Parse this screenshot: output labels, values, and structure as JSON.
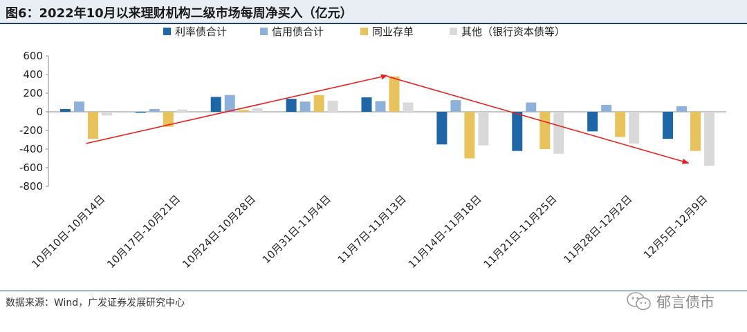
{
  "title": "图6：2022年10月以来理财机构二级市场每周净买入（亿元）",
  "source": "数据来源：Wind，广发证券发展研究中心",
  "watermark": "郁言债市",
  "colors": {
    "series": [
      "#1f66a6",
      "#8eb1d9",
      "#e8c35c",
      "#d9d9d9"
    ],
    "arrow": "#e8201e",
    "axis": "#8a8a8a"
  },
  "chart_data": {
    "type": "bar",
    "title": "2022年10月以来理财机构二级市场每周净买入（亿元）",
    "categories": [
      "10月10日-10月14日",
      "10月17日-10月21日",
      "10月24日-10月28日",
      "10月31日-11月4日",
      "11月7日-11月13日",
      "11月14日-11月18日",
      "11月21日-11月25日",
      "11月28日-12月2日",
      "12月5日-12月9日"
    ],
    "series": [
      {
        "name": "利率债合计",
        "values": [
          30,
          -10,
          160,
          140,
          155,
          -350,
          -420,
          -210,
          -290
        ]
      },
      {
        "name": "信用债合计",
        "values": [
          110,
          30,
          180,
          110,
          115,
          125,
          100,
          75,
          60
        ]
      },
      {
        "name": "同业存单",
        "values": [
          -290,
          -160,
          20,
          180,
          380,
          -500,
          -400,
          -270,
          -420
        ]
      },
      {
        "name": "其他（银行资本债等）",
        "values": [
          -40,
          25,
          40,
          120,
          100,
          -360,
          -450,
          -340,
          -580
        ]
      }
    ],
    "ylim": [
      -800,
      600
    ],
    "yticks": [
      "600",
      "400",
      "200",
      "0",
      "-200",
      "-400",
      "-600",
      "-800"
    ],
    "ytick_values": [
      600,
      400,
      200,
      0,
      -200,
      -400,
      -600,
      -800
    ],
    "trend_arrows": [
      {
        "from": [
          0,
          -340
        ],
        "to": [
          4,
          390
        ]
      },
      {
        "from": [
          4,
          380
        ],
        "to": [
          8,
          -550
        ]
      }
    ],
    "legend": "top"
  }
}
